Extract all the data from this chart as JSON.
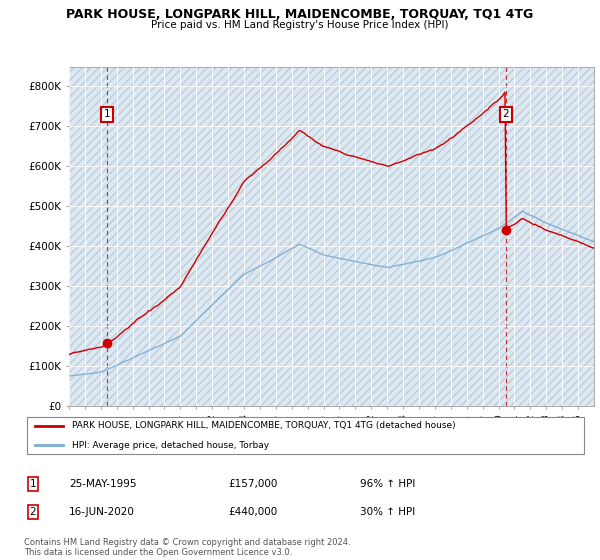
{
  "title": "PARK HOUSE, LONGPARK HILL, MAIDENCOMBE, TORQUAY, TQ1 4TG",
  "subtitle": "Price paid vs. HM Land Registry's House Price Index (HPI)",
  "legend_line1": "PARK HOUSE, LONGPARK HILL, MAIDENCOMBE, TORQUAY, TQ1 4TG (detached house)",
  "legend_line2": "HPI: Average price, detached house, Torbay",
  "footer": "Contains HM Land Registry data © Crown copyright and database right 2024.\nThis data is licensed under the Open Government Licence v3.0.",
  "sale1_date": "25-MAY-1995",
  "sale1_price": 157000,
  "sale1_label": "96% ↑ HPI",
  "sale2_date": "16-JUN-2020",
  "sale2_price": 440000,
  "sale2_label": "30% ↑ HPI",
  "red_color": "#cc0000",
  "blue_color": "#7aadd4",
  "grid_color": "#c8d8e8",
  "bg_color": "#dce8f2",
  "hatch_color": "#c0ccd8",
  "ylim_max": 800000,
  "yticks": [
    0,
    100000,
    200000,
    300000,
    400000,
    500000,
    600000,
    700000,
    800000
  ],
  "ytick_labels": [
    "£0",
    "£100K",
    "£200K",
    "£300K",
    "£400K",
    "£500K",
    "£600K",
    "£700K",
    "£800K"
  ],
  "xstart": 1993,
  "xend": 2026,
  "sale1_year": 1995.375,
  "sale2_year": 2020.458
}
